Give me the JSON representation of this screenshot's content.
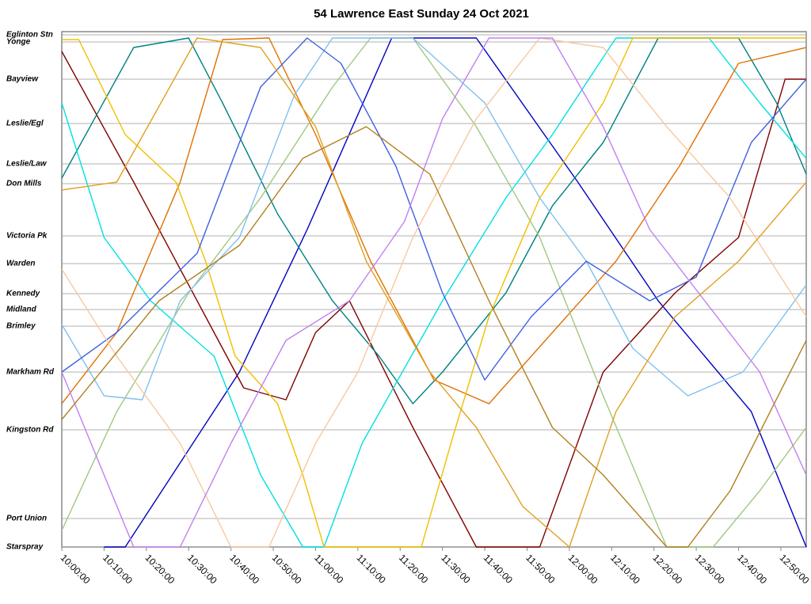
{
  "chart_data": {
    "type": "line",
    "title": "54 Lawrence East Sunday 24 Oct 2021",
    "xlim": [
      "10:00:00",
      "12:56:00"
    ],
    "xticks": [
      "10:00:00",
      "10:10:00",
      "10:20:00",
      "10:30:00",
      "10:40:00",
      "10:50:00",
      "11:00:00",
      "11:10:00",
      "11:20:00",
      "11:30:00",
      "11:40:00",
      "11:50:00",
      "12:00:00",
      "12:10:00",
      "12:20:00",
      "12:30:00",
      "12:40:00",
      "12:50:00"
    ],
    "ylim": [
      0,
      651
    ],
    "yticks": [
      {
        "value": 0,
        "label": "Starspray"
      },
      {
        "value": 36,
        "label": "Port Union"
      },
      {
        "value": 148,
        "label": "Kingston Rd"
      },
      {
        "value": 221,
        "label": "Markham Rd"
      },
      {
        "value": 279,
        "label": "Brimley"
      },
      {
        "value": 300,
        "label": "Midland"
      },
      {
        "value": 320,
        "label": "Kennedy"
      },
      {
        "value": 358,
        "label": "Warden"
      },
      {
        "value": 393,
        "label": "Victoria Pk"
      },
      {
        "value": 459,
        "label": "Don Mills"
      },
      {
        "value": 484,
        "label": "Leslie/Law"
      },
      {
        "value": 535,
        "label": "Leslie/Egl"
      },
      {
        "value": 591,
        "label": "Bayview"
      },
      {
        "value": 638,
        "label": "Yonge"
      },
      {
        "value": 647,
        "label": "Eglinton Stn"
      }
    ],
    "grid": true,
    "series": [
      {
        "color": "#0000c0",
        "x": [
          "10:10:00",
          "10:15:00",
          "10:42:00",
          "10:58:00",
          "11:18:00",
          "11:38:00",
          "12:02:00",
          "12:21:00",
          "12:43:00",
          "12:56:00"
        ],
        "values": [
          0,
          0,
          221,
          401,
          643,
          643,
          461,
          311,
          171,
          0
        ]
      },
      {
        "color": "#800000",
        "x": [
          "10:00:00",
          "10:17:00",
          "10:34:00",
          "10:43:00",
          "10:53:00",
          "11:00:00",
          "11:08:00",
          "11:23:00",
          "11:38:00",
          "11:53:00",
          "12:08:00",
          "12:25:00",
          "12:40:00",
          "12:51:00",
          "12:56:00"
        ],
        "values": [
          626,
          461,
          291,
          201,
          186,
          271,
          311,
          151,
          0,
          0,
          221,
          321,
          391,
          591,
          591
        ]
      },
      {
        "color": "#008080",
        "x": [
          "10:00:00",
          "10:17:00",
          "10:30:00",
          "10:38:00",
          "10:51:00",
          "11:04:00",
          "11:15:00",
          "11:23:00",
          "11:30:00",
          "11:45:00",
          "11:56:00",
          "12:08:00",
          "12:21:00",
          "12:40:00",
          "12:49:00",
          "12:56:00"
        ],
        "values": [
          466,
          631,
          643,
          561,
          421,
          311,
          241,
          181,
          221,
          321,
          431,
          511,
          643,
          643,
          561,
          471
        ]
      },
      {
        "color": "#00e0e0",
        "x": [
          "10:00:00",
          "10:10:00",
          "10:21:00",
          "10:36:00",
          "10:47:00",
          "10:57:00",
          "11:02:00",
          "11:11:00",
          "11:30:00",
          "11:45:00",
          "11:56:00",
          "12:11:00",
          "12:33:00",
          "12:45:00",
          "12:56:00"
        ],
        "values": [
          561,
          391,
          311,
          241,
          91,
          0,
          0,
          131,
          311,
          441,
          521,
          643,
          643,
          561,
          491
        ]
      },
      {
        "color": "#e07000",
        "x": [
          "10:00:00",
          "10:13:00",
          "10:28:00",
          "10:38:00",
          "10:49:00",
          "11:00:00",
          "11:13:00",
          "11:28:00",
          "11:41:00",
          "11:56:00",
          "12:11:00",
          "12:26:00",
          "12:40:00",
          "12:56:00"
        ],
        "values": [
          181,
          271,
          461,
          641,
          643,
          521,
          361,
          211,
          181,
          271,
          361,
          481,
          611,
          631
        ]
      },
      {
        "color": "#f0c000",
        "x": [
          "10:00:00",
          "10:04:00",
          "10:15:00",
          "10:27:00",
          "10:34:00",
          "10:41:00",
          "10:51:00",
          "10:57:00",
          "11:02:00",
          "11:25:00",
          "11:32:00",
          "11:41:00",
          "11:53:00",
          "12:08:00",
          "12:15:00",
          "12:56:00"
        ],
        "values": [
          641,
          641,
          521,
          461,
          361,
          241,
          181,
          91,
          0,
          0,
          131,
          291,
          441,
          561,
          643,
          643
        ]
      },
      {
        "color": "#a0c880",
        "x": [
          "10:00:00",
          "10:13:00",
          "10:30:00",
          "10:47:00",
          "11:04:00",
          "11:13:00",
          "11:23:00",
          "11:38:00",
          "11:53:00",
          "12:08:00",
          "12:23:00",
          "12:34:00",
          "12:45:00",
          "12:56:00"
        ],
        "values": [
          21,
          171,
          321,
          441,
          581,
          643,
          643,
          531,
          391,
          191,
          0,
          0,
          71,
          151
        ]
      },
      {
        "color": "#80c0f0",
        "x": [
          "10:00:00",
          "10:10:00",
          "10:19:00",
          "10:28:00",
          "10:42:00",
          "10:55:00",
          "11:04:00",
          "11:23:00",
          "11:40:00",
          "11:53:00",
          "12:04:00",
          "12:15:00",
          "12:28:00",
          "12:41:00",
          "12:56:00"
        ],
        "values": [
          281,
          191,
          186,
          311,
          391,
          571,
          643,
          643,
          561,
          441,
          361,
          251,
          191,
          221,
          331
        ]
      },
      {
        "color": "#4060e0",
        "x": [
          "10:00:00",
          "10:13:00",
          "10:32:00",
          "10:47:00",
          "10:58:00",
          "11:06:00",
          "11:19:00",
          "11:30:00",
          "11:40:00",
          "11:51:00",
          "12:04:00",
          "12:19:00",
          "12:30:00",
          "12:43:00",
          "12:56:00"
        ],
        "values": [
          221,
          271,
          371,
          581,
          643,
          611,
          481,
          321,
          211,
          291,
          361,
          311,
          341,
          511,
          591
        ]
      },
      {
        "color": "#f8c8a0",
        "x": [
          "10:00:00",
          "10:13:00",
          "10:28:00",
          "10:40:00",
          "10:49:00",
          "11:00:00",
          "11:10:00",
          "11:23:00",
          "11:38:00",
          "11:53:00",
          "12:08:00",
          "12:23:00",
          "12:38:00",
          "12:56:00"
        ],
        "values": [
          351,
          241,
          131,
          0,
          0,
          131,
          221,
          391,
          541,
          643,
          631,
          531,
          441,
          291
        ]
      },
      {
        "color": "#c080f0",
        "x": [
          "10:00:00",
          "10:10:00",
          "10:17:00",
          "10:28:00",
          "10:40:00",
          "10:53:00",
          "11:08:00",
          "11:21:00",
          "11:30:00",
          "11:41:00",
          "11:56:00",
          "12:08:00",
          "12:19:00",
          "12:32:00",
          "12:45:00",
          "12:56:00"
        ],
        "values": [
          221,
          91,
          0,
          0,
          131,
          261,
          311,
          411,
          541,
          643,
          643,
          531,
          401,
          311,
          221,
          91
        ]
      },
      {
        "color": "#e0a020",
        "x": [
          "10:00:00",
          "10:13:00",
          "10:32:00",
          "10:47:00",
          "11:00:00",
          "11:12:00",
          "11:27:00",
          "11:38:00",
          "11:49:00",
          "12:00:00",
          "12:11:00",
          "12:25:00",
          "12:40:00",
          "12:56:00"
        ],
        "values": [
          451,
          461,
          643,
          631,
          531,
          361,
          221,
          151,
          51,
          0,
          171,
          291,
          361,
          461
        ]
      },
      {
        "color": "#b08020",
        "x": [
          "10:00:00",
          "10:23:00",
          "10:42:00",
          "10:57:00",
          "11:12:00",
          "11:27:00",
          "11:41:00",
          "11:56:00",
          "12:08:00",
          "12:23:00",
          "12:28:00",
          "12:38:00",
          "12:56:00"
        ],
        "values": [
          161,
          311,
          381,
          491,
          531,
          471,
          311,
          151,
          91,
          0,
          0,
          71,
          261
        ]
      }
    ]
  }
}
